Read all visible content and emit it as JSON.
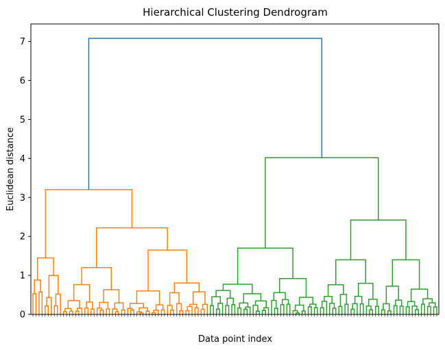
{
  "chart_data": {
    "type": "dendrogram",
    "title": "Hierarchical Clustering Dendrogram",
    "xlabel": "Data point index",
    "ylabel": "Euclidean distance",
    "ylim": [
      0,
      7.45
    ],
    "yticks": [
      0,
      1,
      2,
      3,
      4,
      5,
      6,
      7
    ],
    "grid": false,
    "n_leaves": 133,
    "colors": {
      "cluster_a": "#ff7f0e",
      "cluster_b": "#2ca02c",
      "root": "#1f77b4"
    },
    "merges": [
      {
        "name": "root",
        "height": 7.08,
        "color": "root"
      },
      {
        "name": "cluster-a",
        "height": 3.2,
        "color": "cluster_a"
      },
      {
        "name": "cluster-b",
        "height": 4.02,
        "color": "cluster_b"
      },
      {
        "name": "a-left",
        "height": 1.45,
        "color": "cluster_a"
      },
      {
        "name": "a-right",
        "height": 2.22,
        "color": "cluster_a"
      },
      {
        "name": "a-right-left",
        "height": 1.2,
        "color": "cluster_a"
      },
      {
        "name": "a-right-right",
        "height": 1.65,
        "color": "cluster_a"
      },
      {
        "name": "b-left",
        "height": 1.7,
        "color": "cluster_b"
      },
      {
        "name": "b-right",
        "height": 2.42,
        "color": "cluster_b"
      },
      {
        "name": "b-right-left",
        "height": 1.4,
        "color": "cluster_b"
      },
      {
        "name": "b-right-right",
        "height": 1.4,
        "color": "cluster_b"
      }
    ]
  }
}
